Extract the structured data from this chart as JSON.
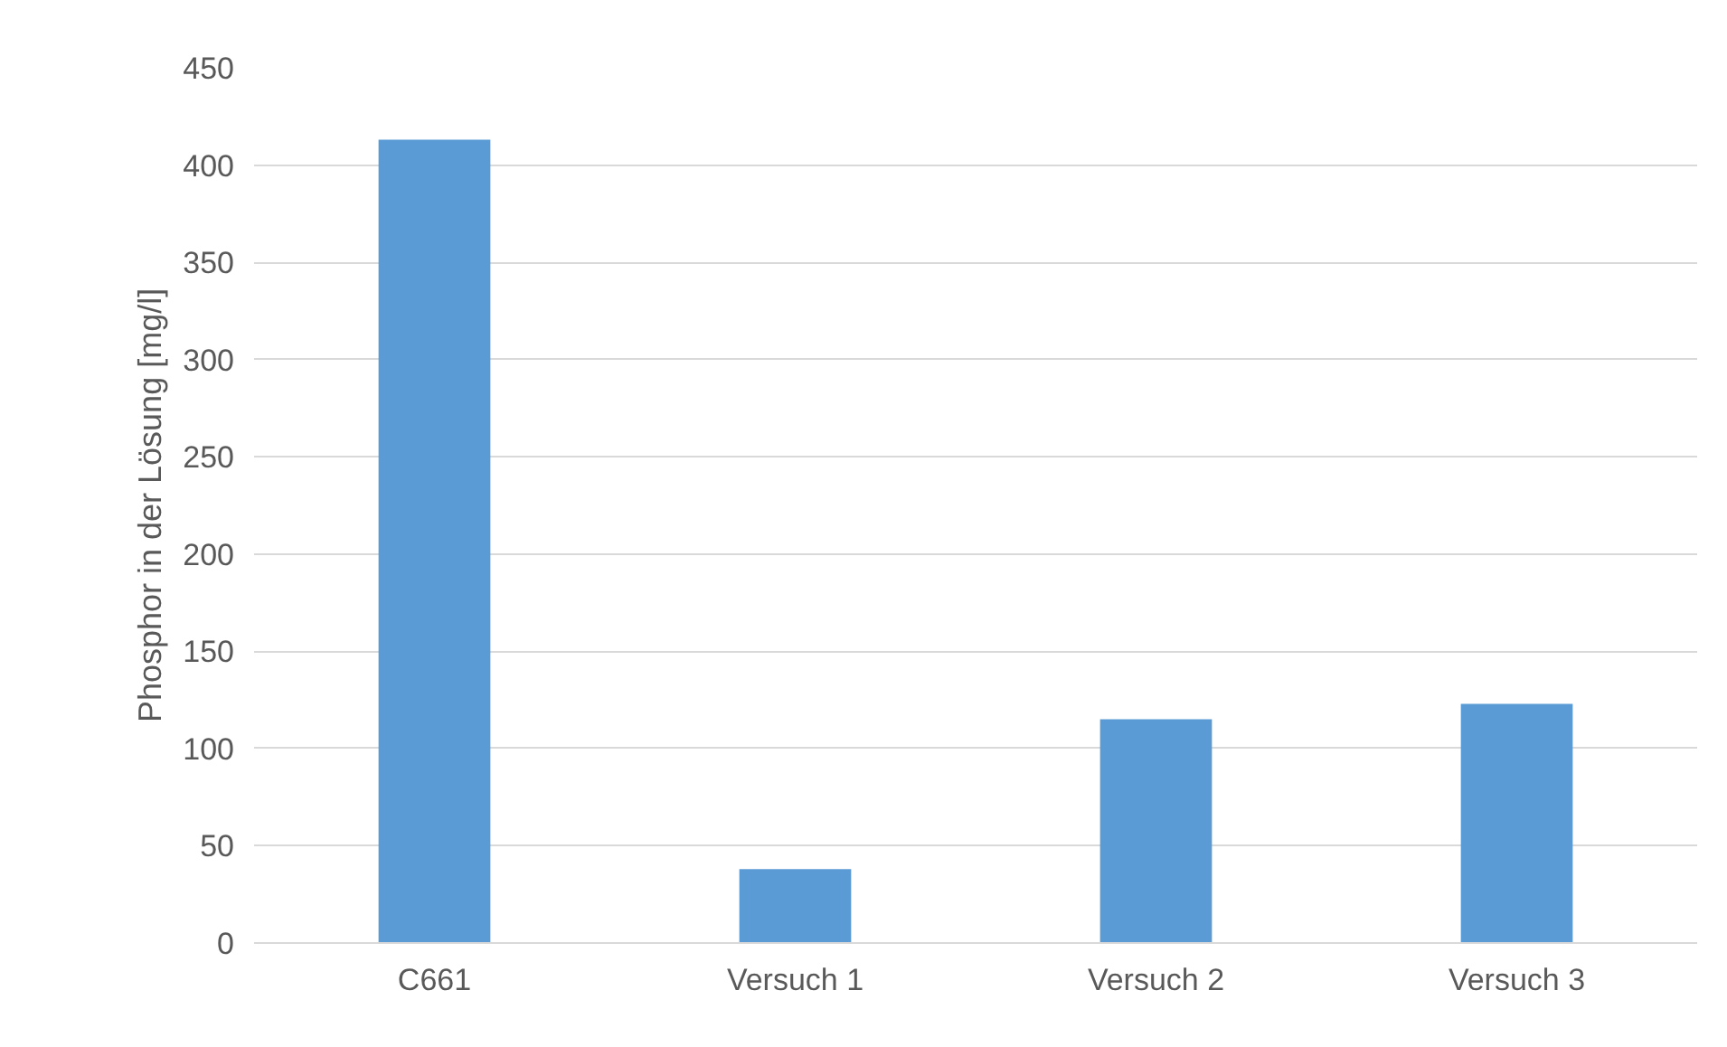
{
  "chart_data": {
    "type": "bar",
    "ylabel": "Phosphor in der Lösung [mg/l]",
    "categories": [
      "C661",
      "Versuch 1",
      "Versuch 2",
      "Versuch 3"
    ],
    "values": [
      413,
      38,
      115,
      123
    ],
    "color": "#5b9bd5",
    "ylim": [
      0,
      450
    ],
    "yticks": [
      0,
      50,
      100,
      150,
      200,
      250,
      300,
      350,
      400,
      450
    ],
    "grid": "y"
  }
}
